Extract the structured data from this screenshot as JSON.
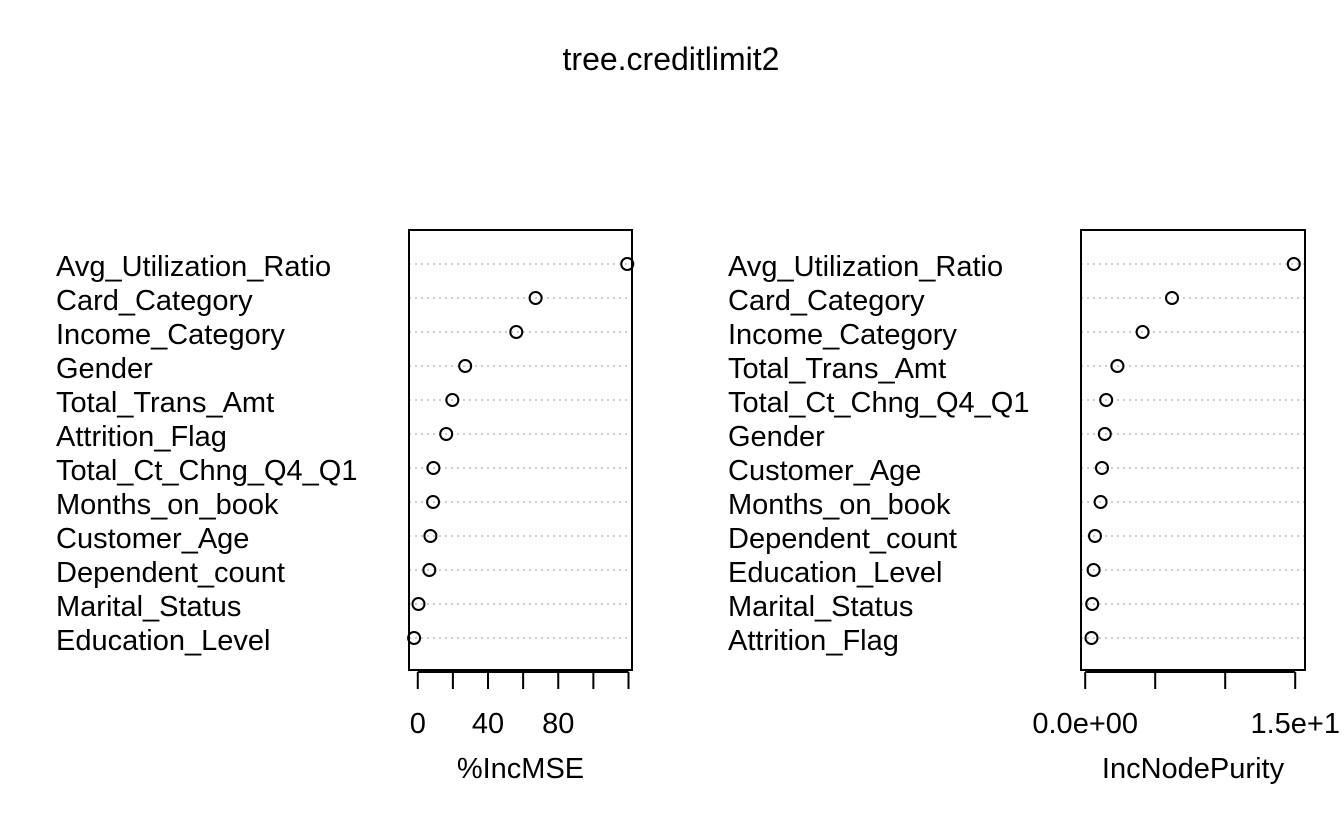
{
  "title": "tree.creditlimit2",
  "chart_data": [
    {
      "type": "scatter",
      "subtype": "dotchart",
      "xlabel": "%IncMSE",
      "xticks": [
        0,
        20,
        40,
        60,
        80,
        100,
        120
      ],
      "xtick_labels": [
        "0",
        "",
        "40",
        "",
        "80",
        "",
        ""
      ],
      "xlim": [
        -5,
        122
      ],
      "grid": "dotted horizontal lines per variable",
      "categories": [
        "Avg_Utilization_Ratio",
        "Card_Category",
        "Income_Category",
        "Gender",
        "Total_Trans_Amt",
        "Attrition_Flag",
        "Total_Ct_Chng_Q4_Q1",
        "Months_on_book",
        "Customer_Age",
        "Dependent_count",
        "Marital_Status",
        "Education_Level"
      ],
      "values": [
        119.3,
        67.1,
        56.1,
        27.0,
        19.7,
        16.2,
        8.9,
        8.7,
        7.2,
        6.6,
        0.4,
        -2.1
      ]
    },
    {
      "type": "scatter",
      "subtype": "dotchart",
      "xlabel": "IncNodePurity",
      "xticks": [
        0,
        5,
        10,
        15
      ],
      "xtick_labels": [
        "0.0e+00",
        "",
        "",
        "1.5e+1"
      ],
      "xtick_unit": "x10",
      "xlim": [
        -0.3,
        15.7
      ],
      "grid": "dotted horizontal lines per variable",
      "categories": [
        "Avg_Utilization_Ratio",
        "Card_Category",
        "Income_Category",
        "Total_Trans_Amt",
        "Total_Ct_Chng_Q4_Q1",
        "Gender",
        "Customer_Age",
        "Months_on_book",
        "Dependent_count",
        "Education_Level",
        "Marital_Status",
        "Attrition_Flag"
      ],
      "values": [
        14.9,
        6.2,
        4.1,
        2.3,
        1.5,
        1.4,
        1.2,
        1.1,
        0.7,
        0.6,
        0.5,
        0.45
      ]
    }
  ]
}
